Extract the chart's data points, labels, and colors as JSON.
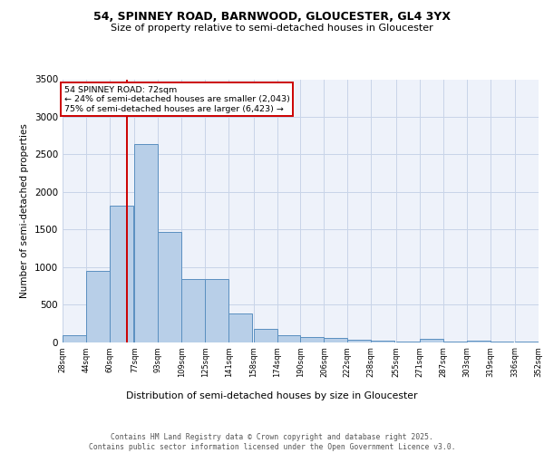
{
  "title1": "54, SPINNEY ROAD, BARNWOOD, GLOUCESTER, GL4 3YX",
  "title2": "Size of property relative to semi-detached houses in Gloucester",
  "xlabel": "Distribution of semi-detached houses by size in Gloucester",
  "ylabel": "Number of semi-detached properties",
  "footnote": "Contains HM Land Registry data © Crown copyright and database right 2025.\nContains public sector information licensed under the Open Government Licence v3.0.",
  "bar_left_edges": [
    28,
    44,
    60,
    77,
    93,
    109,
    125,
    141,
    158,
    174,
    190,
    206,
    222,
    238,
    255,
    271,
    287,
    303,
    319,
    336
  ],
  "bar_widths": [
    16,
    16,
    16,
    16,
    16,
    16,
    16,
    16,
    16,
    16,
    16,
    16,
    16,
    16,
    16,
    16,
    16,
    16,
    16,
    16
  ],
  "bar_heights": [
    95,
    950,
    1820,
    2640,
    1470,
    840,
    840,
    380,
    180,
    95,
    65,
    50,
    30,
    20,
    10,
    40,
    10,
    15,
    5,
    5
  ],
  "bar_color": "#b8cfe8",
  "bar_edge_color": "#5a8fc0",
  "grid_color": "#c8d4e8",
  "bg_color": "#eef2fa",
  "red_line_x": 72,
  "red_line_color": "#cc0000",
  "annotation_text": "54 SPINNEY ROAD: 72sqm\n← 24% of semi-detached houses are smaller (2,043)\n75% of semi-detached houses are larger (6,423) →",
  "annotation_box_color": "#cc0000",
  "ylim": [
    0,
    3500
  ],
  "yticks": [
    0,
    500,
    1000,
    1500,
    2000,
    2500,
    3000,
    3500
  ],
  "tick_labels": [
    "28sqm",
    "44sqm",
    "60sqm",
    "77sqm",
    "93sqm",
    "109sqm",
    "125sqm",
    "141sqm",
    "158sqm",
    "174sqm",
    "190sqm",
    "206sqm",
    "222sqm",
    "238sqm",
    "255sqm",
    "271sqm",
    "287sqm",
    "303sqm",
    "319sqm",
    "336sqm",
    "352sqm"
  ]
}
